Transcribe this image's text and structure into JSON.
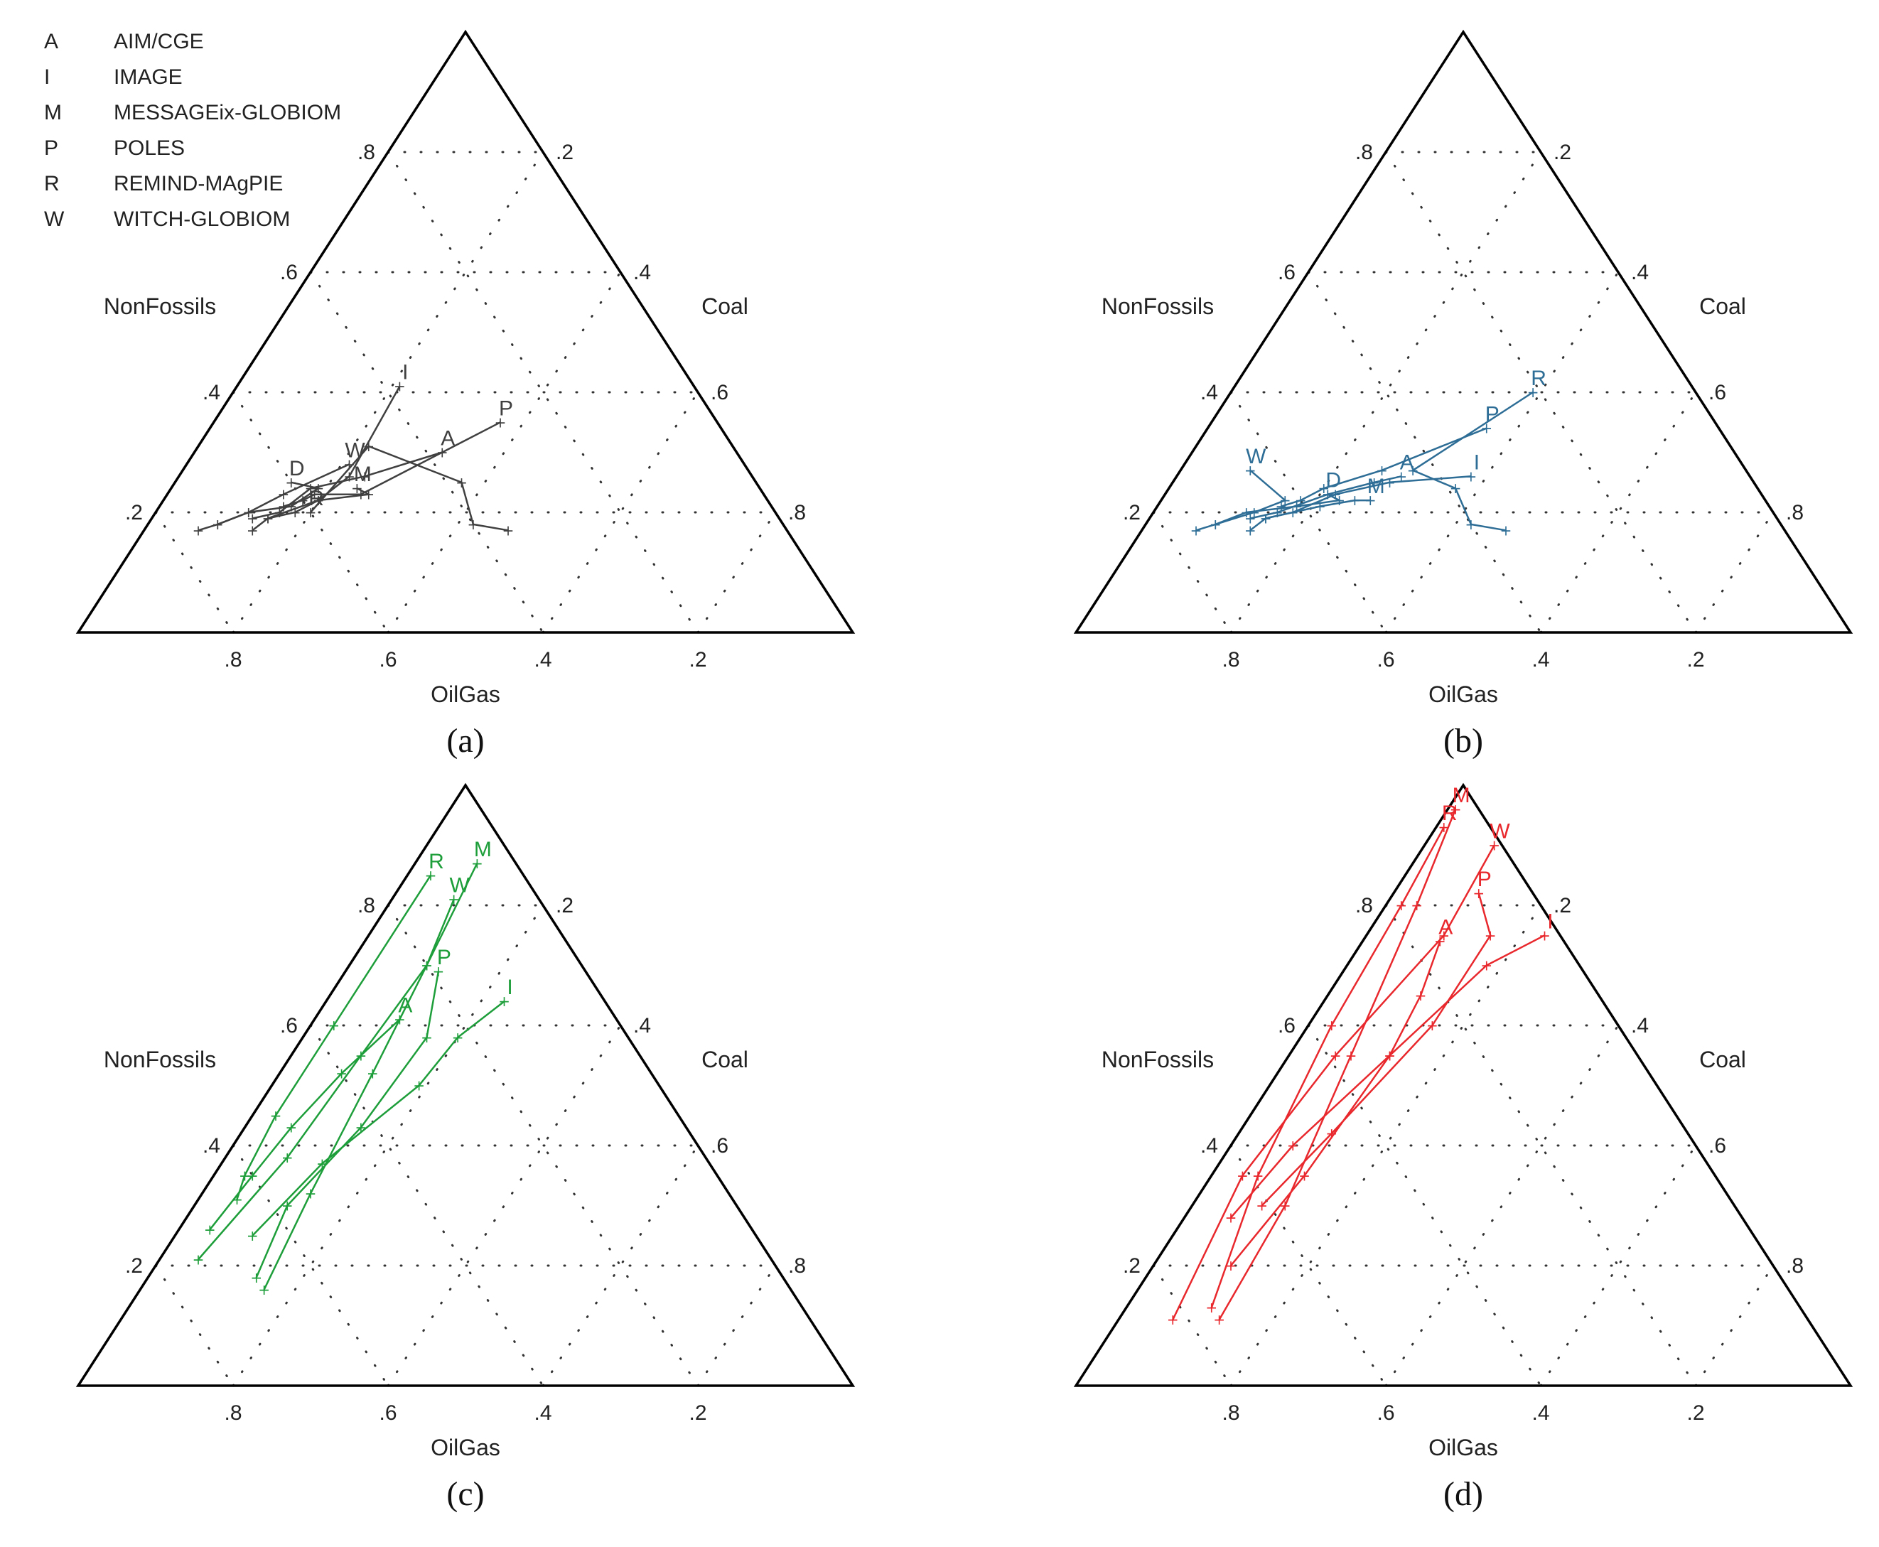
{
  "legend": [
    {
      "letter": "A",
      "name": "AIM/CGE"
    },
    {
      "letter": "I",
      "name": "IMAGE"
    },
    {
      "letter": "M",
      "name": "MESSAGEix-GLOBIOM"
    },
    {
      "letter": "P",
      "name": "POLES"
    },
    {
      "letter": "R",
      "name": "REMIND-MAgPIE"
    },
    {
      "letter": "W",
      "name": "WITCH-GLOBIOM"
    }
  ],
  "chart_data": [
    {
      "type": "ternary",
      "panel_label": "(a)",
      "color": "#404040",
      "axes": {
        "left": "NonFossils",
        "right": "Coal",
        "bottom": "OilGas"
      },
      "ticks": [
        ".2",
        ".4",
        ".6",
        ".8"
      ],
      "series": [
        {
          "model": "R",
          "points": [
            [
              0.17,
              0.47
            ],
            [
              0.18,
              0.42
            ],
            [
              0.25,
              0.37
            ],
            [
              0.31,
              0.22
            ],
            [
              0.2,
              0.2
            ]
          ]
        },
        {
          "model": "P",
          "points": [
            [
              0.21,
              0.16
            ],
            [
              0.22,
              0.18
            ],
            [
              0.23,
              0.19
            ],
            [
              0.23,
              0.25
            ],
            [
              0.35,
              0.37
            ]
          ]
        },
        {
          "model": "A",
          "points": [
            [
              0.19,
              0.13
            ],
            [
              0.2,
              0.16
            ],
            [
              0.24,
              0.18
            ],
            [
              0.26,
              0.24
            ],
            [
              0.3,
              0.32
            ]
          ]
        },
        {
          "model": "I",
          "points": [
            [
              0.19,
              0.15
            ],
            [
              0.2,
              0.18
            ],
            [
              0.22,
              0.2
            ],
            [
              0.26,
              0.22
            ],
            [
              0.41,
              0.21
            ]
          ]
        },
        {
          "model": "M",
          "points": [
            [
              0.17,
              0.14
            ],
            [
              0.19,
              0.15
            ],
            [
              0.22,
              0.2
            ],
            [
              0.23,
              0.26
            ],
            [
              0.24,
              0.24
            ]
          ]
        },
        {
          "model": "W",
          "points": [
            [
              0.17,
              0.07
            ],
            [
              0.18,
              0.09
            ],
            [
              0.2,
              0.12
            ],
            [
              0.23,
              0.15
            ],
            [
              0.28,
              0.21
            ]
          ]
        },
        {
          "model": "D",
          "points": [
            [
              0.18,
              0.09
            ],
            [
              0.2,
              0.12
            ],
            [
              0.21,
              0.17
            ],
            [
              0.24,
              0.19
            ],
            [
              0.25,
              0.15
            ]
          ]
        }
      ]
    },
    {
      "type": "ternary",
      "panel_label": "(b)",
      "color": "#2e6e96",
      "axes": {
        "left": "NonFossils",
        "right": "Coal",
        "bottom": "OilGas"
      },
      "ticks": [
        ".2",
        ".4",
        ".6",
        ".8"
      ],
      "series": [
        {
          "model": "R",
          "points": [
            [
              0.17,
              0.47
            ],
            [
              0.18,
              0.42
            ],
            [
              0.24,
              0.37
            ],
            [
              0.27,
              0.3
            ],
            [
              0.4,
              0.39
            ]
          ]
        },
        {
          "model": "P",
          "points": [
            [
              0.21,
              0.16
            ],
            [
              0.22,
              0.18
            ],
            [
              0.24,
              0.2
            ],
            [
              0.27,
              0.26
            ],
            [
              0.34,
              0.36
            ]
          ]
        },
        {
          "model": "A",
          "points": [
            [
              0.19,
              0.13
            ],
            [
              0.2,
              0.16
            ],
            [
              0.23,
              0.21
            ],
            [
              0.25,
              0.26
            ],
            [
              0.26,
              0.29
            ]
          ]
        },
        {
          "model": "I",
          "points": [
            [
              0.19,
              0.15
            ],
            [
              0.2,
              0.18
            ],
            [
              0.23,
              0.22
            ],
            [
              0.25,
              0.28
            ],
            [
              0.26,
              0.38
            ]
          ]
        },
        {
          "model": "M",
          "points": [
            [
              0.17,
              0.14
            ],
            [
              0.19,
              0.15
            ],
            [
              0.21,
              0.21
            ],
            [
              0.22,
              0.25
            ],
            [
              0.22,
              0.27
            ]
          ]
        },
        {
          "model": "W",
          "points": [
            [
              0.17,
              0.07
            ],
            [
              0.18,
              0.09
            ],
            [
              0.2,
              0.13
            ],
            [
              0.22,
              0.16
            ],
            [
              0.27,
              0.09
            ]
          ]
        },
        {
          "model": "D",
          "points": [
            [
              0.18,
              0.09
            ],
            [
              0.2,
              0.12
            ],
            [
              0.21,
              0.18
            ],
            [
              0.22,
              0.23
            ],
            [
              0.23,
              0.21
            ]
          ]
        }
      ]
    },
    {
      "type": "ternary",
      "panel_label": "(c)",
      "color": "#1e9e3a",
      "axes": {
        "left": "NonFossils",
        "right": "Coal",
        "bottom": "OilGas"
      },
      "ticks": [
        ".2",
        ".4",
        ".6",
        ".8"
      ],
      "series": [
        {
          "model": "R",
          "points": [
            [
              0.31,
              0.05
            ],
            [
              0.35,
              0.04
            ],
            [
              0.45,
              0.03
            ],
            [
              0.6,
              0.03
            ],
            [
              0.85,
              0.03
            ]
          ]
        },
        {
          "model": "M",
          "points": [
            [
              0.16,
              0.16
            ],
            [
              0.32,
              0.14
            ],
            [
              0.52,
              0.12
            ],
            [
              0.7,
              0.1
            ],
            [
              0.87,
              0.08
            ]
          ]
        },
        {
          "model": "W",
          "points": [
            [
              0.21,
              0.05
            ],
            [
              0.38,
              0.08
            ],
            [
              0.55,
              0.09
            ],
            [
              0.7,
              0.1
            ],
            [
              0.81,
              0.08
            ]
          ]
        },
        {
          "model": "P",
          "points": [
            [
              0.18,
              0.14
            ],
            [
              0.3,
              0.12
            ],
            [
              0.43,
              0.15
            ],
            [
              0.58,
              0.16
            ],
            [
              0.69,
              0.12
            ]
          ]
        },
        {
          "model": "I",
          "points": [
            [
              0.25,
              0.1
            ],
            [
              0.37,
              0.13
            ],
            [
              0.5,
              0.19
            ],
            [
              0.58,
              0.2
            ],
            [
              0.64,
              0.23
            ]
          ]
        },
        {
          "model": "A",
          "points": [
            [
              0.26,
              0.04
            ],
            [
              0.35,
              0.05
            ],
            [
              0.43,
              0.06
            ],
            [
              0.52,
              0.08
            ],
            [
              0.61,
              0.11
            ]
          ]
        }
      ]
    },
    {
      "type": "ternary",
      "panel_label": "(d)",
      "color": "#e8282c",
      "axes": {
        "left": "NonFossils",
        "right": "Coal",
        "bottom": "OilGas"
      },
      "ticks": [
        ".2",
        ".4",
        ".6",
        ".8"
      ],
      "series": [
        {
          "model": "M",
          "points": [
            [
              0.11,
              0.13
            ],
            [
              0.3,
              0.12
            ],
            [
              0.55,
              0.08
            ],
            [
              0.8,
              0.04
            ],
            [
              0.96,
              0.01
            ]
          ]
        },
        {
          "model": "R",
          "points": [
            [
              0.13,
              0.11
            ],
            [
              0.35,
              0.06
            ],
            [
              0.6,
              0.03
            ],
            [
              0.8,
              0.02
            ],
            [
              0.93,
              0.01
            ]
          ]
        },
        {
          "model": "W",
          "points": [
            [
              0.11,
              0.07
            ],
            [
              0.35,
              0.04
            ],
            [
              0.55,
              0.06
            ],
            [
              0.75,
              0.1
            ],
            [
              0.9,
              0.09
            ]
          ]
        },
        {
          "model": "P",
          "points": [
            [
              0.3,
              0.09
            ],
            [
              0.42,
              0.12
            ],
            [
              0.6,
              0.16
            ],
            [
              0.75,
              0.16
            ],
            [
              0.82,
              0.11
            ]
          ]
        },
        {
          "model": "A",
          "points": [
            [
              0.2,
              0.1
            ],
            [
              0.35,
              0.12
            ],
            [
              0.55,
              0.13
            ],
            [
              0.65,
              0.12
            ],
            [
              0.74,
              0.1
            ]
          ]
        },
        {
          "model": "I",
          "points": [
            [
              0.28,
              0.06
            ],
            [
              0.4,
              0.08
            ],
            [
              0.55,
              0.13
            ],
            [
              0.7,
              0.18
            ],
            [
              0.75,
              0.23
            ]
          ]
        }
      ]
    }
  ]
}
